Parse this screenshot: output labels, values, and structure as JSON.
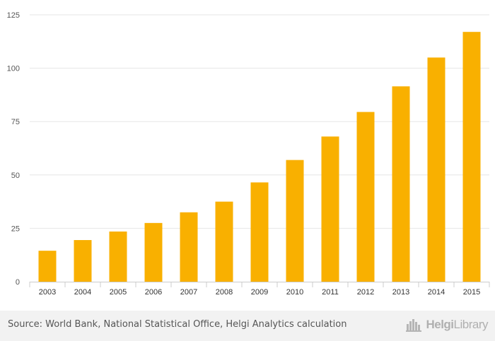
{
  "chart_data": {
    "type": "bar",
    "categories": [
      "2003",
      "2004",
      "2005",
      "2006",
      "2007",
      "2008",
      "2009",
      "2010",
      "2011",
      "2012",
      "2013",
      "2014",
      "2015"
    ],
    "values": [
      14.5,
      19.5,
      23.5,
      27.5,
      32.5,
      37.5,
      46.5,
      57,
      68,
      79.5,
      91.5,
      105,
      117
    ],
    "title": "",
    "xlabel": "",
    "ylabel": "",
    "ylim": [
      0,
      125
    ],
    "yticks": [
      0,
      25,
      50,
      75,
      100,
      125
    ],
    "ytick_labels": [
      "0",
      "25",
      "50",
      "75",
      "100",
      "125"
    ],
    "bar_color": "#f9b000",
    "grid": true
  },
  "footer": {
    "source": "Source: World Bank, National Statistical Office, Helgi Analytics calculation",
    "logo_bold": "Helgi",
    "logo_light": "Library"
  },
  "icons": {
    "logo_icon": "city-skyline-icon"
  },
  "colors": {
    "bar": "#f9b000",
    "grid": "#e6e6e6",
    "axis": "#cccccc",
    "footer_bg": "#f2f2f2"
  }
}
